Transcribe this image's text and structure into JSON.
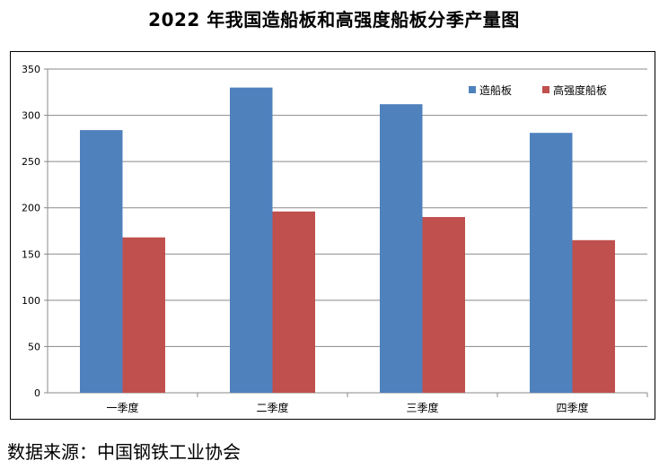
{
  "title": "2022 年我国造船板和高强度船板分季产量图",
  "source": "数据来源：中国钢铁工业协会",
  "chart_data": {
    "type": "bar",
    "categories": [
      "一季度",
      "二季度",
      "三季度",
      "四季度"
    ],
    "series": [
      {
        "name": "造船板",
        "values": [
          284,
          330,
          312,
          281
        ],
        "color": "#4f81bd"
      },
      {
        "name": "高强度船板",
        "values": [
          168,
          196,
          190,
          165
        ],
        "color": "#c0504d"
      }
    ],
    "ylim": [
      0,
      350
    ],
    "yticks": [
      0,
      50,
      100,
      150,
      200,
      250,
      300,
      350
    ],
    "grid": true,
    "legend": "top-right"
  }
}
